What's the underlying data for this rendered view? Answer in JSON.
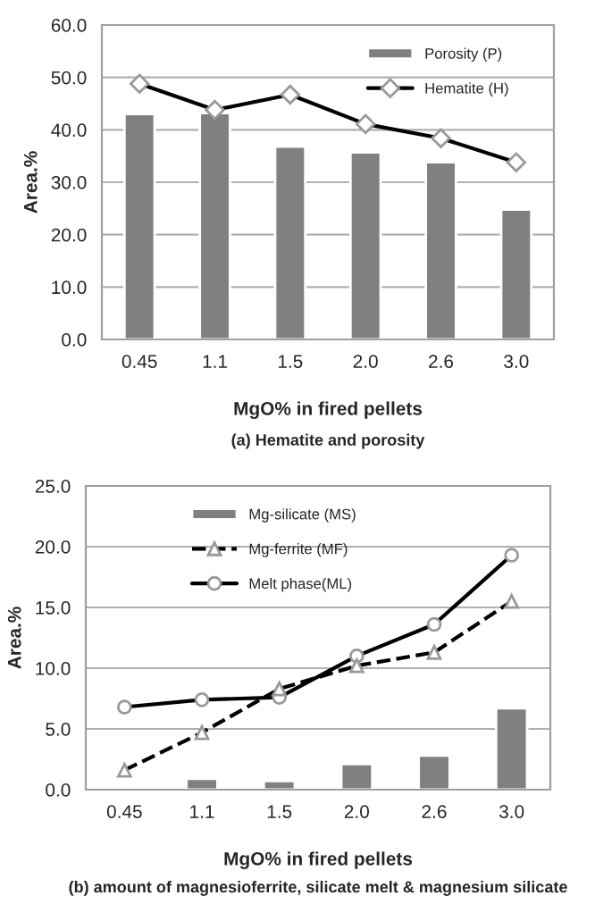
{
  "chart_data": [
    {
      "type": "bar",
      "title": "(a) Hematite and porosity",
      "xlabel": "MgO% in fired pellets",
      "ylabel": "Area.%",
      "categories": [
        "0.45",
        "1.1",
        "1.5",
        "2.0",
        "2.6",
        "3.0"
      ],
      "ylim": [
        0,
        60
      ],
      "yticks": [
        {
          "value": 0,
          "label": "0.0"
        },
        {
          "value": 10,
          "label": "10.0"
        },
        {
          "value": 20,
          "label": "20.0"
        },
        {
          "value": 30,
          "label": "30.0"
        },
        {
          "value": 40,
          "label": "40.0"
        },
        {
          "value": 50,
          "label": "50.0"
        },
        {
          "value": 60,
          "label": "60.0"
        }
      ],
      "grid": "y",
      "legend": "top right",
      "series": [
        {
          "name": "Porosity (P)",
          "color": "#808080",
          "values": [
            43.0,
            43.2,
            36.8,
            35.7,
            33.8,
            24.8
          ]
        },
        {
          "name": "Hematite (H)",
          "type": "line",
          "color": "#000000",
          "marker": "diamond",
          "line_style": "solid",
          "values": [
            48.8,
            43.8,
            46.7,
            41.1,
            38.4,
            33.8
          ]
        }
      ]
    },
    {
      "type": "bar",
      "title": "(b) amount of magnesioferrite, silicate melt & magnesium silicate",
      "xlabel": "MgO% in fired pellets",
      "ylabel": "Area.%",
      "categories": [
        "0.45",
        "1.1",
        "1.5",
        "2.0",
        "2.6",
        "3.0"
      ],
      "ylim": [
        0,
        25
      ],
      "yticks": [
        {
          "value": 0,
          "label": "0.0"
        },
        {
          "value": 5,
          "label": "5.0"
        },
        {
          "value": 10,
          "label": "10.0"
        },
        {
          "value": 15,
          "label": "15.0"
        },
        {
          "value": 20,
          "label": "20.0"
        },
        {
          "value": 25,
          "label": "25.0"
        }
      ],
      "grid": "y",
      "legend": "top left",
      "series": [
        {
          "name": "Mg-silicate (MS)",
          "color": "#808080",
          "values": [
            null,
            0.9,
            0.7,
            2.1,
            2.8,
            6.7
          ]
        },
        {
          "name": "Mg-ferrite (MF)",
          "type": "line",
          "color": "#000000",
          "marker": "triangle",
          "line_style": "dashed",
          "values": [
            1.6,
            4.7,
            8.3,
            10.2,
            11.3,
            15.5
          ]
        },
        {
          "name": "Melt phase(ML)",
          "type": "line",
          "color": "#000000",
          "marker": "circle",
          "line_style": "solid",
          "values": [
            6.8,
            7.4,
            7.6,
            11.0,
            13.6,
            19.3
          ]
        }
      ]
    }
  ]
}
